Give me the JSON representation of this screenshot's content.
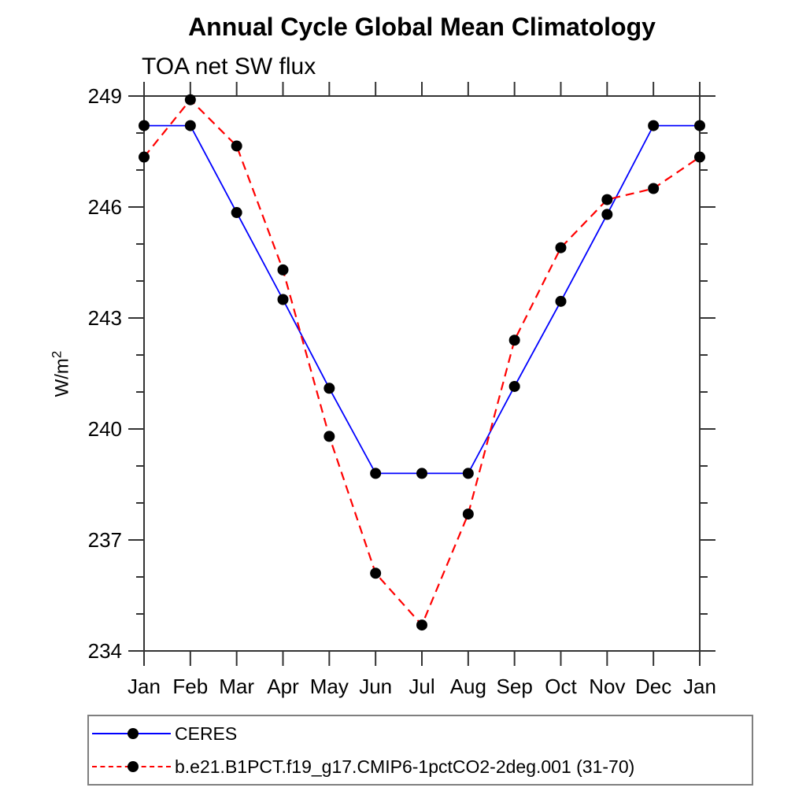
{
  "page": {
    "background": "#ffffff"
  },
  "chart_data": {
    "type": "line",
    "title": "Annual Cycle Global Mean Climatology",
    "subtitle": "TOA net SW flux",
    "ylabel_base": "W/m",
    "ylabel_exponent": "2",
    "xlabel": "",
    "categories": [
      "Jan",
      "Feb",
      "Mar",
      "Apr",
      "May",
      "Jun",
      "Jul",
      "Aug",
      "Sep",
      "Oct",
      "Nov",
      "Dec",
      "Jan"
    ],
    "ylim": [
      234,
      249
    ],
    "ytick_major_step": 3,
    "ytick_minor_step": 1,
    "ytick_major_labels": [
      "234",
      "237",
      "240",
      "243",
      "246",
      "249"
    ],
    "grid": false,
    "legend_position": "bottom",
    "axis_color": "#333333",
    "marker_color": "#000000",
    "series": [
      {
        "name": "CERES",
        "color": "#0000ff",
        "style": "solid",
        "marker": "circle",
        "values": [
          248.2,
          248.2,
          245.85,
          243.5,
          241.1,
          238.8,
          238.8,
          238.8,
          241.15,
          243.45,
          245.8,
          248.2,
          248.2
        ]
      },
      {
        "name": "b.e21.B1PCT.f19_g17.CMIP6-1pctCO2-2deg.001 (31-70)",
        "color": "#ff0000",
        "style": "dashed",
        "marker": "circle",
        "values": [
          247.35,
          248.9,
          247.65,
          244.3,
          239.8,
          236.1,
          234.7,
          237.7,
          242.4,
          244.9,
          246.2,
          246.5,
          247.35
        ]
      }
    ]
  }
}
